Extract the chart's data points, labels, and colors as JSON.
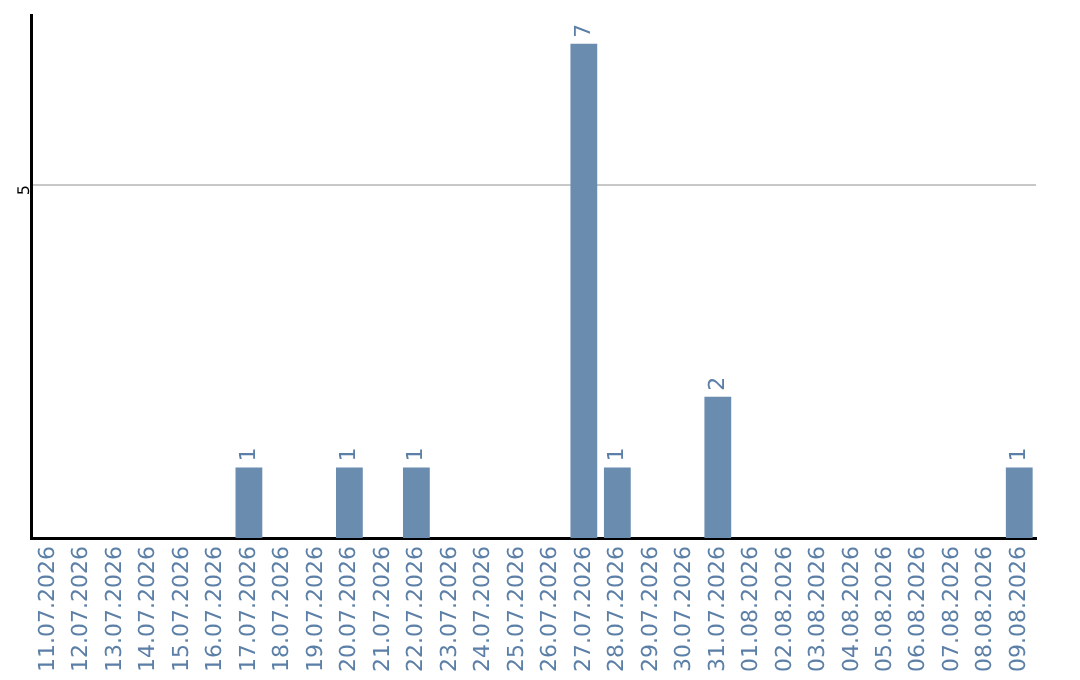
{
  "chart_data": {
    "type": "bar",
    "categories": [
      "11.07.2026",
      "12.07.2026",
      "13.07.2026",
      "14.07.2026",
      "15.07.2026",
      "16.07.2026",
      "17.07.2026",
      "18.07.2026",
      "19.07.2026",
      "20.07.2026",
      "21.07.2026",
      "22.07.2026",
      "23.07.2026",
      "24.07.2026",
      "25.07.2026",
      "26.07.2026",
      "27.07.2026",
      "28.07.2026",
      "29.07.2026",
      "30.07.2026",
      "31.07.2026",
      "01.08.2026",
      "02.08.2026",
      "03.08.2026",
      "04.08.2026",
      "05.08.2026",
      "06.08.2026",
      "07.08.2026",
      "08.08.2026",
      "09.08.2026"
    ],
    "values": [
      0,
      0,
      0,
      0,
      0,
      0,
      1,
      0,
      0,
      1,
      0,
      1,
      0,
      0,
      0,
      0,
      7,
      1,
      0,
      0,
      2,
      0,
      0,
      0,
      0,
      0,
      0,
      0,
      0,
      1
    ],
    "value_labels": [
      null,
      null,
      null,
      null,
      null,
      null,
      "1",
      null,
      null,
      "1",
      null,
      "1",
      null,
      null,
      null,
      null,
      "7",
      "1",
      null,
      null,
      "2",
      null,
      null,
      null,
      null,
      null,
      null,
      null,
      null,
      "1"
    ],
    "color": "#6a8caf",
    "ylim": [
      0,
      7.4
    ],
    "yticks": [
      5
    ],
    "grid": "y",
    "legend": false
  }
}
